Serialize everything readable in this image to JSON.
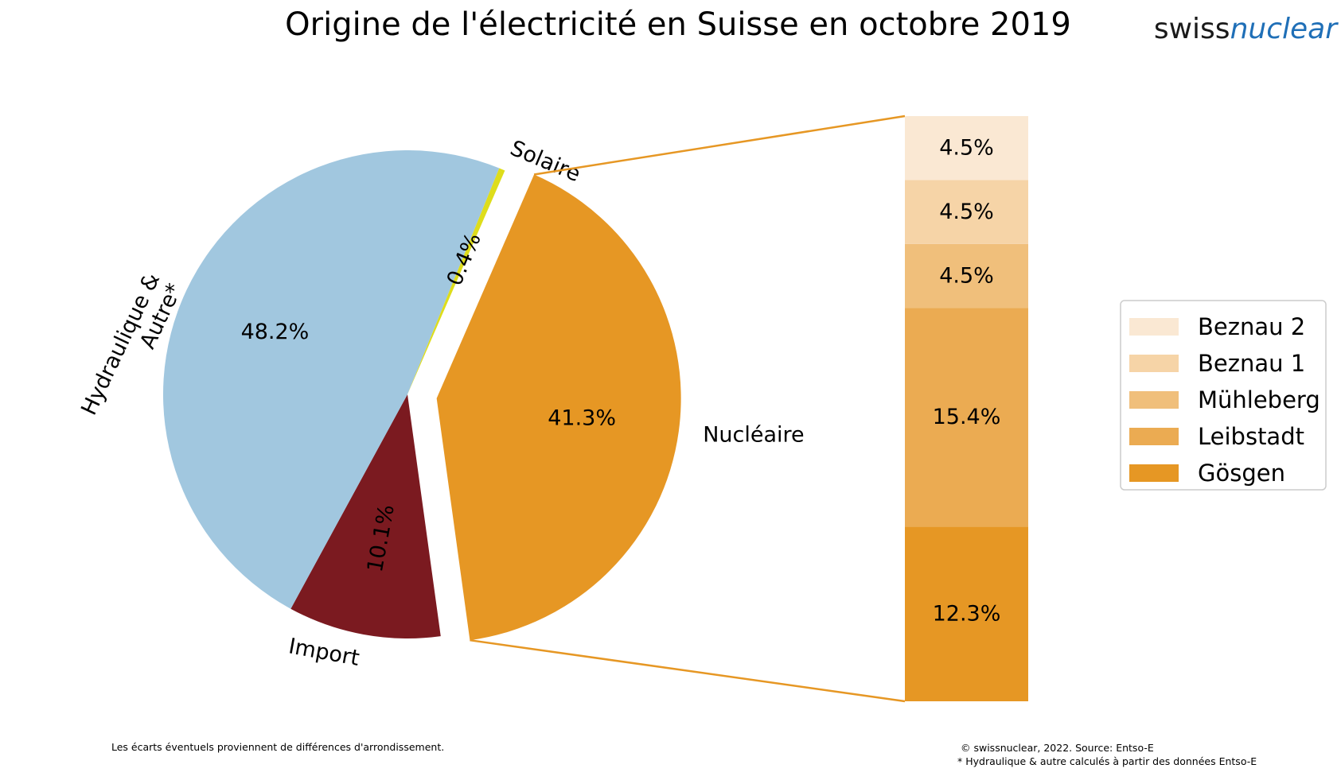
{
  "logo": {
    "part1": "swiss",
    "part2": "nuclear"
  },
  "colors": {
    "hydro": "#a1c7df",
    "solar": "#dedd1b",
    "nuclear": "#e69724",
    "import": "#7b1a20",
    "beznau2": "#fae8d3",
    "beznau1": "#f6d4a7",
    "muhleberg": "#f0bf7b",
    "leibstadt": "#ebab52",
    "gosgen": "#e69724",
    "connector": "#e69724"
  },
  "chart_data": [
    {
      "type": "pie",
      "title": "Origine de l'électricité en Suisse en octobre 2019",
      "slices": [
        {
          "name": "Nucléaire",
          "value": 41.3,
          "pct_label": "41.3%",
          "exploded": true,
          "color_key": "nuclear"
        },
        {
          "name": "Import",
          "value": 10.1,
          "pct_label": "10.1%",
          "color_key": "import"
        },
        {
          "name": "Hydraulique & Autre*",
          "name_lines": [
            "Hydraulique &",
            "Autre*"
          ],
          "value": 48.2,
          "pct_label": "48.2%",
          "color_key": "hydro"
        },
        {
          "name": "Solaire",
          "value": 0.4,
          "pct_label": "0.4%",
          "color_key": "solar"
        }
      ]
    },
    {
      "type": "bar",
      "stacked": true,
      "legend_position": "right",
      "segments": [
        {
          "name": "Gösgen",
          "value": 12.3,
          "label": "12.3%",
          "color_key": "gosgen"
        },
        {
          "name": "Leibstadt",
          "value": 15.4,
          "label": "15.4%",
          "color_key": "leibstadt"
        },
        {
          "name": "Mühleberg",
          "value": 4.5,
          "label": "4.5%",
          "color_key": "muhleberg"
        },
        {
          "name": "Beznau 1",
          "value": 4.5,
          "label": "4.5%",
          "color_key": "beznau1"
        },
        {
          "name": "Beznau 2",
          "value": 4.5,
          "label": "4.5%",
          "color_key": "beznau2"
        }
      ],
      "legend": [
        "Beznau 2",
        "Beznau 1",
        "Mühleberg",
        "Leibstadt",
        "Gösgen"
      ]
    }
  ],
  "footer": {
    "left": "Les écarts éventuels proviennent de différences d'arrondissement.",
    "right_line1": "© swissnuclear, 2022. Source: Entso-E",
    "right_line2": "* Hydraulique & autre calculés à partir des données Entso-E"
  }
}
